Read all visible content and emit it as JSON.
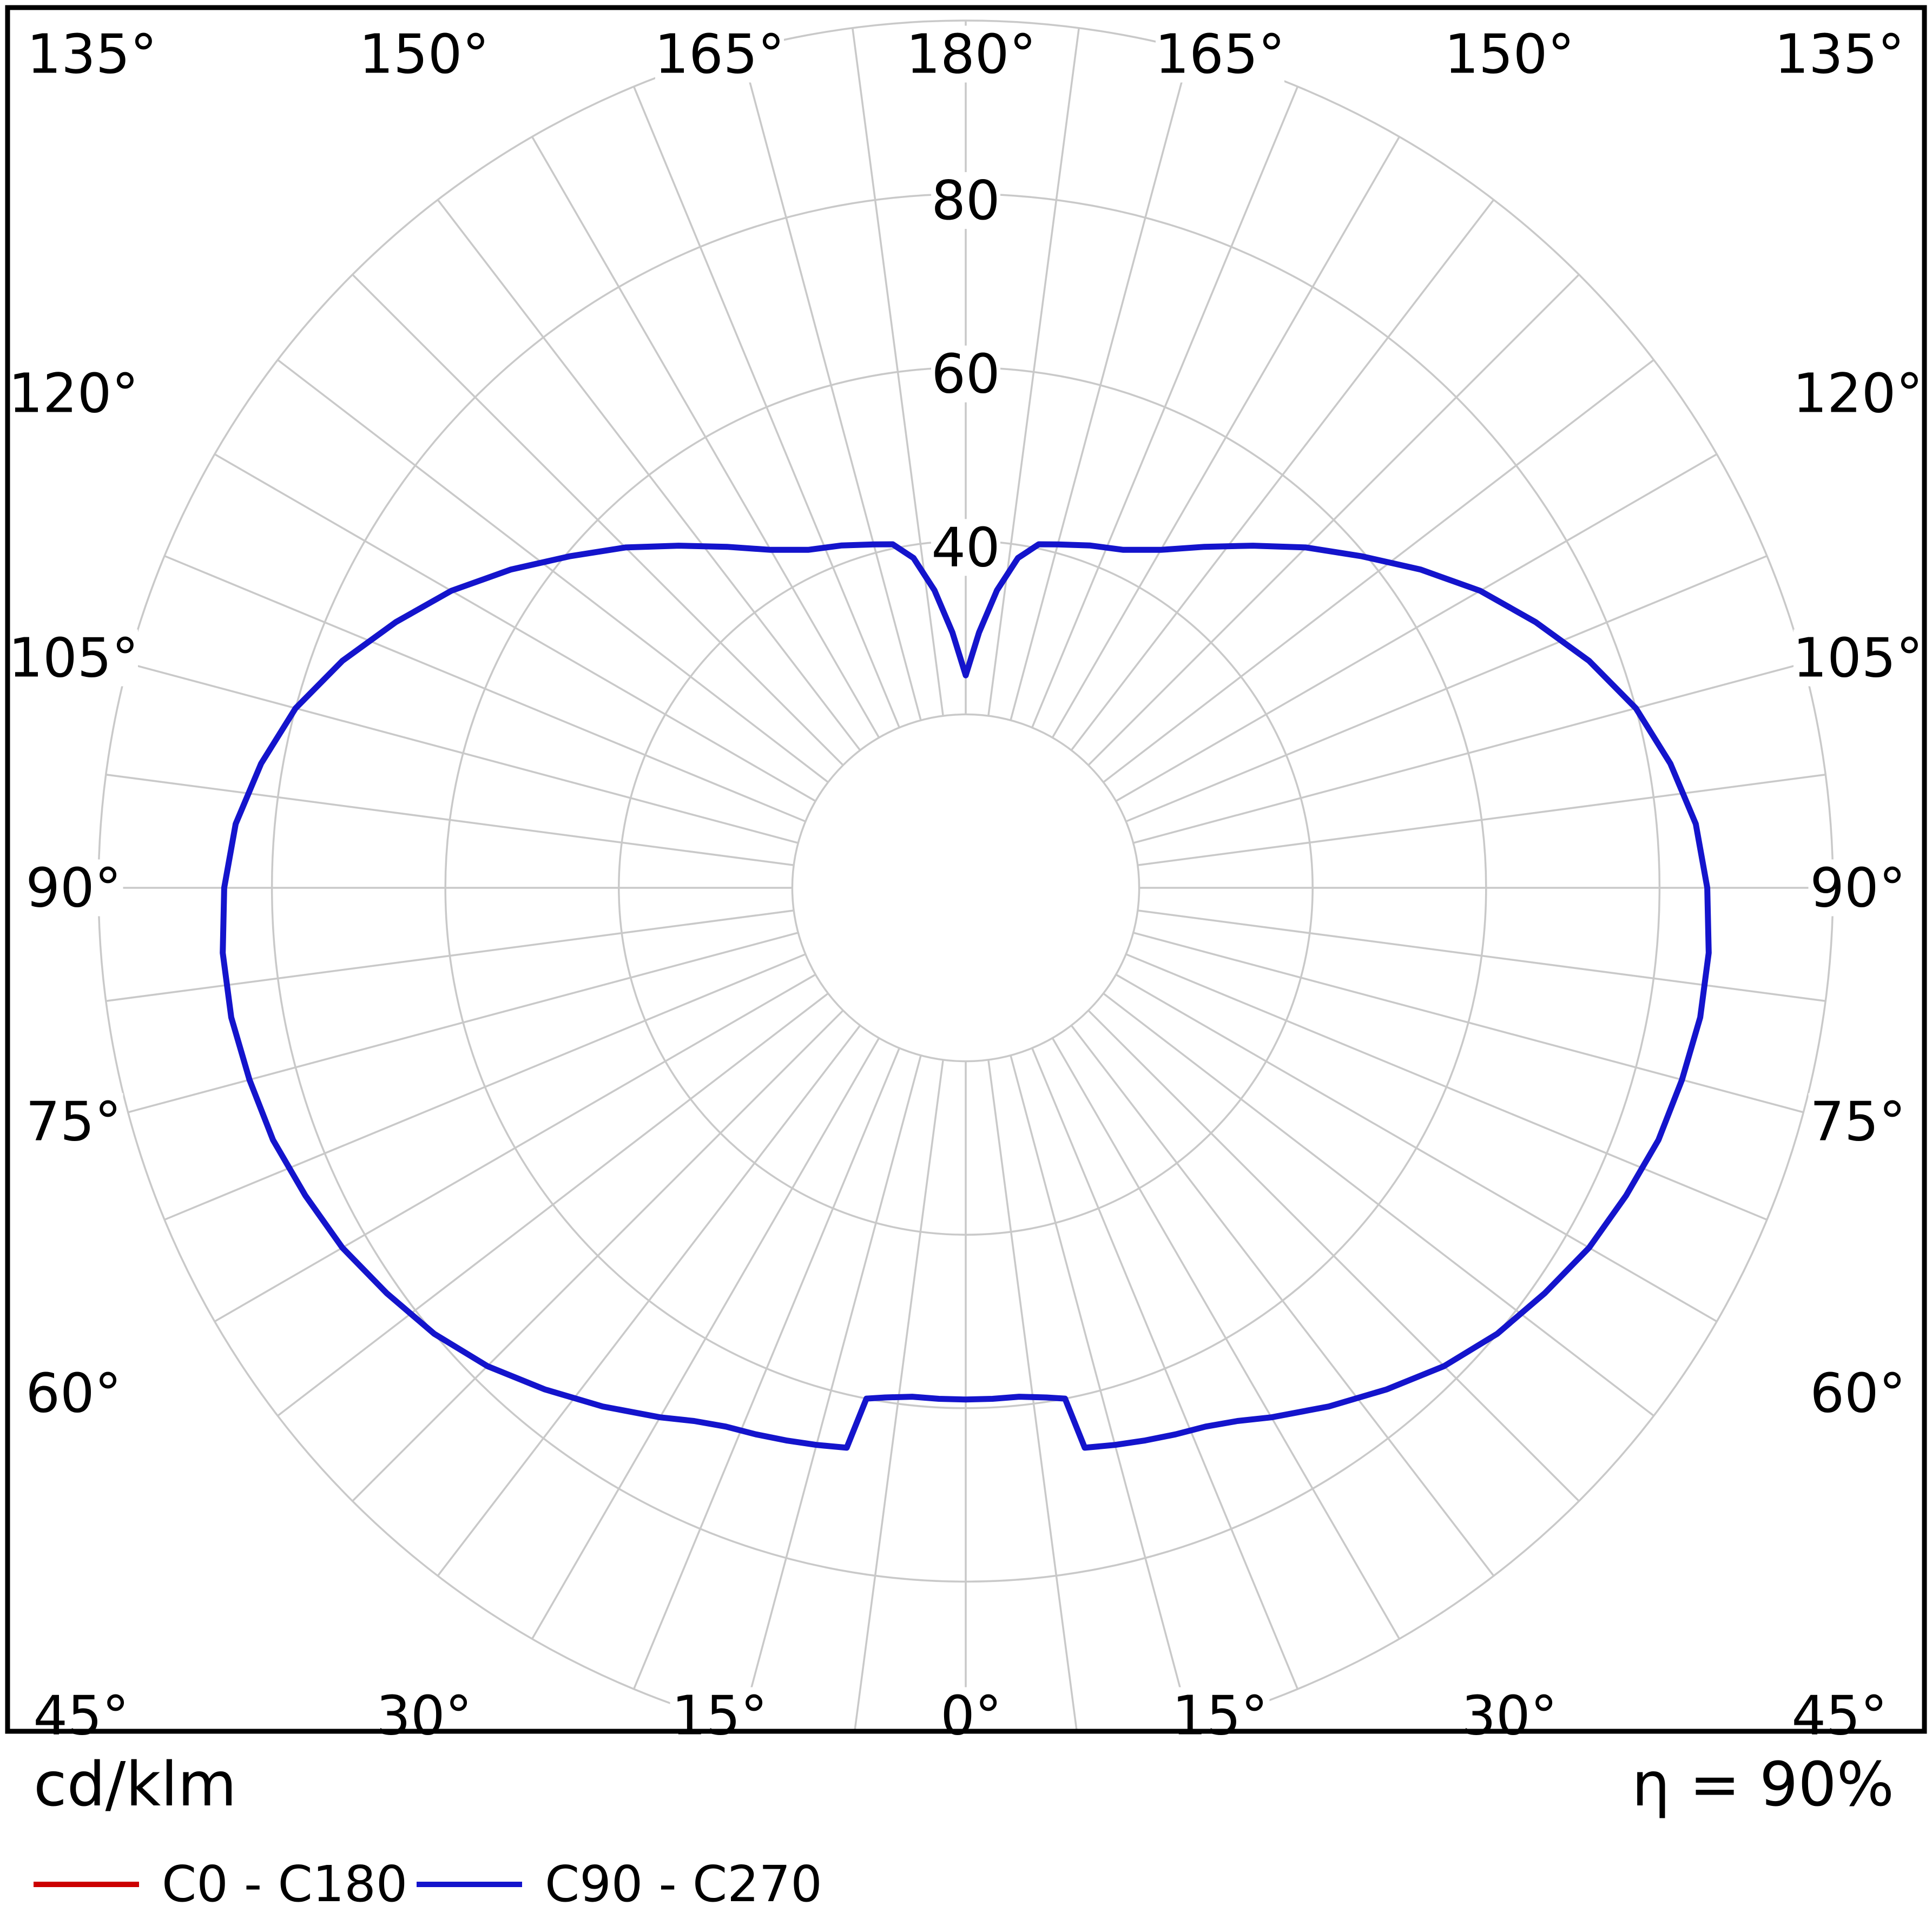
{
  "figure": {
    "unit_label": "cd/klm",
    "eta_label": "η = 90%"
  },
  "legend": {
    "items": [
      {
        "label": "C0 - C180",
        "color": "#cc0000"
      },
      {
        "label": "C90 - C270",
        "color": "#1414cc"
      }
    ]
  },
  "chart_data": {
    "type": "line",
    "subtype": "polar-photometric-luminous-intensity",
    "title": "",
    "unit": "cd/klm",
    "efficiency_percent": 90,
    "grid": {
      "ring_values": [
        20,
        40,
        60,
        80,
        100
      ],
      "ring_axis_labels": [
        "40",
        "60",
        "80"
      ],
      "angle_labels_top": [
        "135°",
        "150°",
        "165°",
        "180°",
        "165°",
        "150°",
        "135°"
      ],
      "angle_labels_left": [
        "120°",
        "105°",
        "90°",
        "75°",
        "60°"
      ],
      "angle_labels_right": [
        "120°",
        "105°",
        "90°",
        "75°",
        "60°"
      ],
      "angle_labels_bottom": [
        "45°",
        "30°",
        "15°",
        "0°",
        "15°",
        "30°",
        "45°"
      ],
      "minor_angle_step": 7.5,
      "major_angle_step": 15,
      "rmax": 100,
      "grid_color": "#c9c9c9"
    },
    "series": [
      {
        "name": "C0 - C180",
        "color": "#cc0000",
        "symmetric_half_points": [
          [
            0,
            59
          ],
          [
            3,
            59
          ],
          [
            6,
            59
          ],
          [
            9,
            59.5
          ],
          [
            11,
            60
          ],
          [
            12,
            66
          ],
          [
            15,
            66.5
          ],
          [
            18,
            67
          ],
          [
            21,
            67.5
          ],
          [
            24,
            68
          ],
          [
            27,
            69
          ],
          [
            30,
            70.5
          ],
          [
            35,
            73
          ],
          [
            40,
            75.5
          ],
          [
            45,
            78
          ],
          [
            50,
            80
          ],
          [
            55,
            81.5
          ],
          [
            60,
            83
          ],
          [
            65,
            84
          ],
          [
            70,
            85
          ],
          [
            75,
            85.5
          ],
          [
            80,
            86
          ],
          [
            85,
            86
          ],
          [
            90,
            85.5
          ],
          [
            95,
            84.5
          ],
          [
            100,
            82.5
          ],
          [
            105,
            80
          ],
          [
            110,
            76.5
          ],
          [
            115,
            72.5
          ],
          [
            120,
            68.5
          ],
          [
            125,
            64
          ],
          [
            130,
            59.5
          ],
          [
            135,
            55.5
          ],
          [
            140,
            51.5
          ],
          [
            145,
            48
          ],
          [
            150,
            45
          ],
          [
            155,
            43
          ],
          [
            160,
            42
          ],
          [
            165,
            41
          ],
          [
            168,
            40.5
          ],
          [
            171,
            38.5
          ],
          [
            174,
            34.5
          ],
          [
            177,
            29.5
          ],
          [
            180,
            24.5
          ]
        ]
      },
      {
        "name": "C90 - C270",
        "color": "#1414cc",
        "symmetric_half_points": [
          [
            0,
            59
          ],
          [
            3,
            59
          ],
          [
            6,
            59
          ],
          [
            9,
            59.5
          ],
          [
            11,
            60
          ],
          [
            12,
            66
          ],
          [
            15,
            66.5
          ],
          [
            18,
            67
          ],
          [
            21,
            67.5
          ],
          [
            24,
            68
          ],
          [
            27,
            69
          ],
          [
            30,
            70.5
          ],
          [
            35,
            73
          ],
          [
            40,
            75.5
          ],
          [
            45,
            78
          ],
          [
            50,
            80
          ],
          [
            55,
            81.5
          ],
          [
            60,
            83
          ],
          [
            65,
            84
          ],
          [
            70,
            85
          ],
          [
            75,
            85.5
          ],
          [
            80,
            86
          ],
          [
            85,
            86
          ],
          [
            90,
            85.5
          ],
          [
            95,
            84.5
          ],
          [
            100,
            82.5
          ],
          [
            105,
            80
          ],
          [
            110,
            76.5
          ],
          [
            115,
            72.5
          ],
          [
            120,
            68.5
          ],
          [
            125,
            64
          ],
          [
            130,
            59.5
          ],
          [
            135,
            55.5
          ],
          [
            140,
            51.5
          ],
          [
            145,
            48
          ],
          [
            150,
            45
          ],
          [
            155,
            43
          ],
          [
            160,
            42
          ],
          [
            165,
            41
          ],
          [
            168,
            40.5
          ],
          [
            171,
            38.5
          ],
          [
            174,
            34.5
          ],
          [
            177,
            29.5
          ],
          [
            180,
            24.5
          ]
        ]
      }
    ]
  }
}
